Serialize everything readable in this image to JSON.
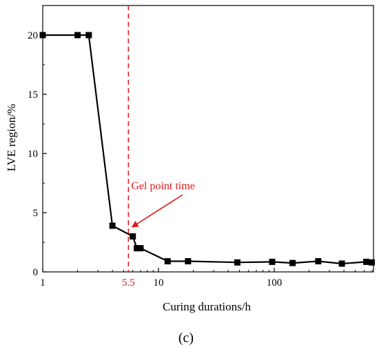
{
  "chart_data": {
    "type": "line",
    "xscale": "log",
    "xlabel": "Curing durations/h",
    "ylabel": "LVE region/%",
    "xlim": [
      1,
      720
    ],
    "ylim": [
      0,
      22.5
    ],
    "x_ticks": [
      1,
      10,
      100
    ],
    "x_tick_labels": [
      "1",
      "10",
      "100"
    ],
    "y_ticks": [
      0,
      5,
      10,
      15,
      20
    ],
    "y_tick_labels": [
      "0",
      "5",
      "10",
      "15",
      "20"
    ],
    "series": [
      {
        "x": [
          1,
          2,
          2.5,
          4,
          6,
          6.5,
          7,
          12,
          18,
          48,
          96,
          144,
          240,
          384,
          624,
          696
        ],
        "y": [
          20,
          20,
          20,
          3.9,
          3.0,
          2.0,
          2.0,
          0.9,
          0.9,
          0.8,
          0.85,
          0.75,
          0.9,
          0.7,
          0.85,
          0.8
        ],
        "color": "#000000",
        "marker": "square"
      }
    ],
    "vline": {
      "x": 5.5,
      "label": "5.5",
      "color": "#e31a1c",
      "style": "dashed"
    },
    "annotation": {
      "text": "Gel point time",
      "color": "#e31a1c",
      "arrow_to": {
        "x": 5.5,
        "y": 3.7
      }
    },
    "panel_label": "(c)",
    "grid": false
  }
}
